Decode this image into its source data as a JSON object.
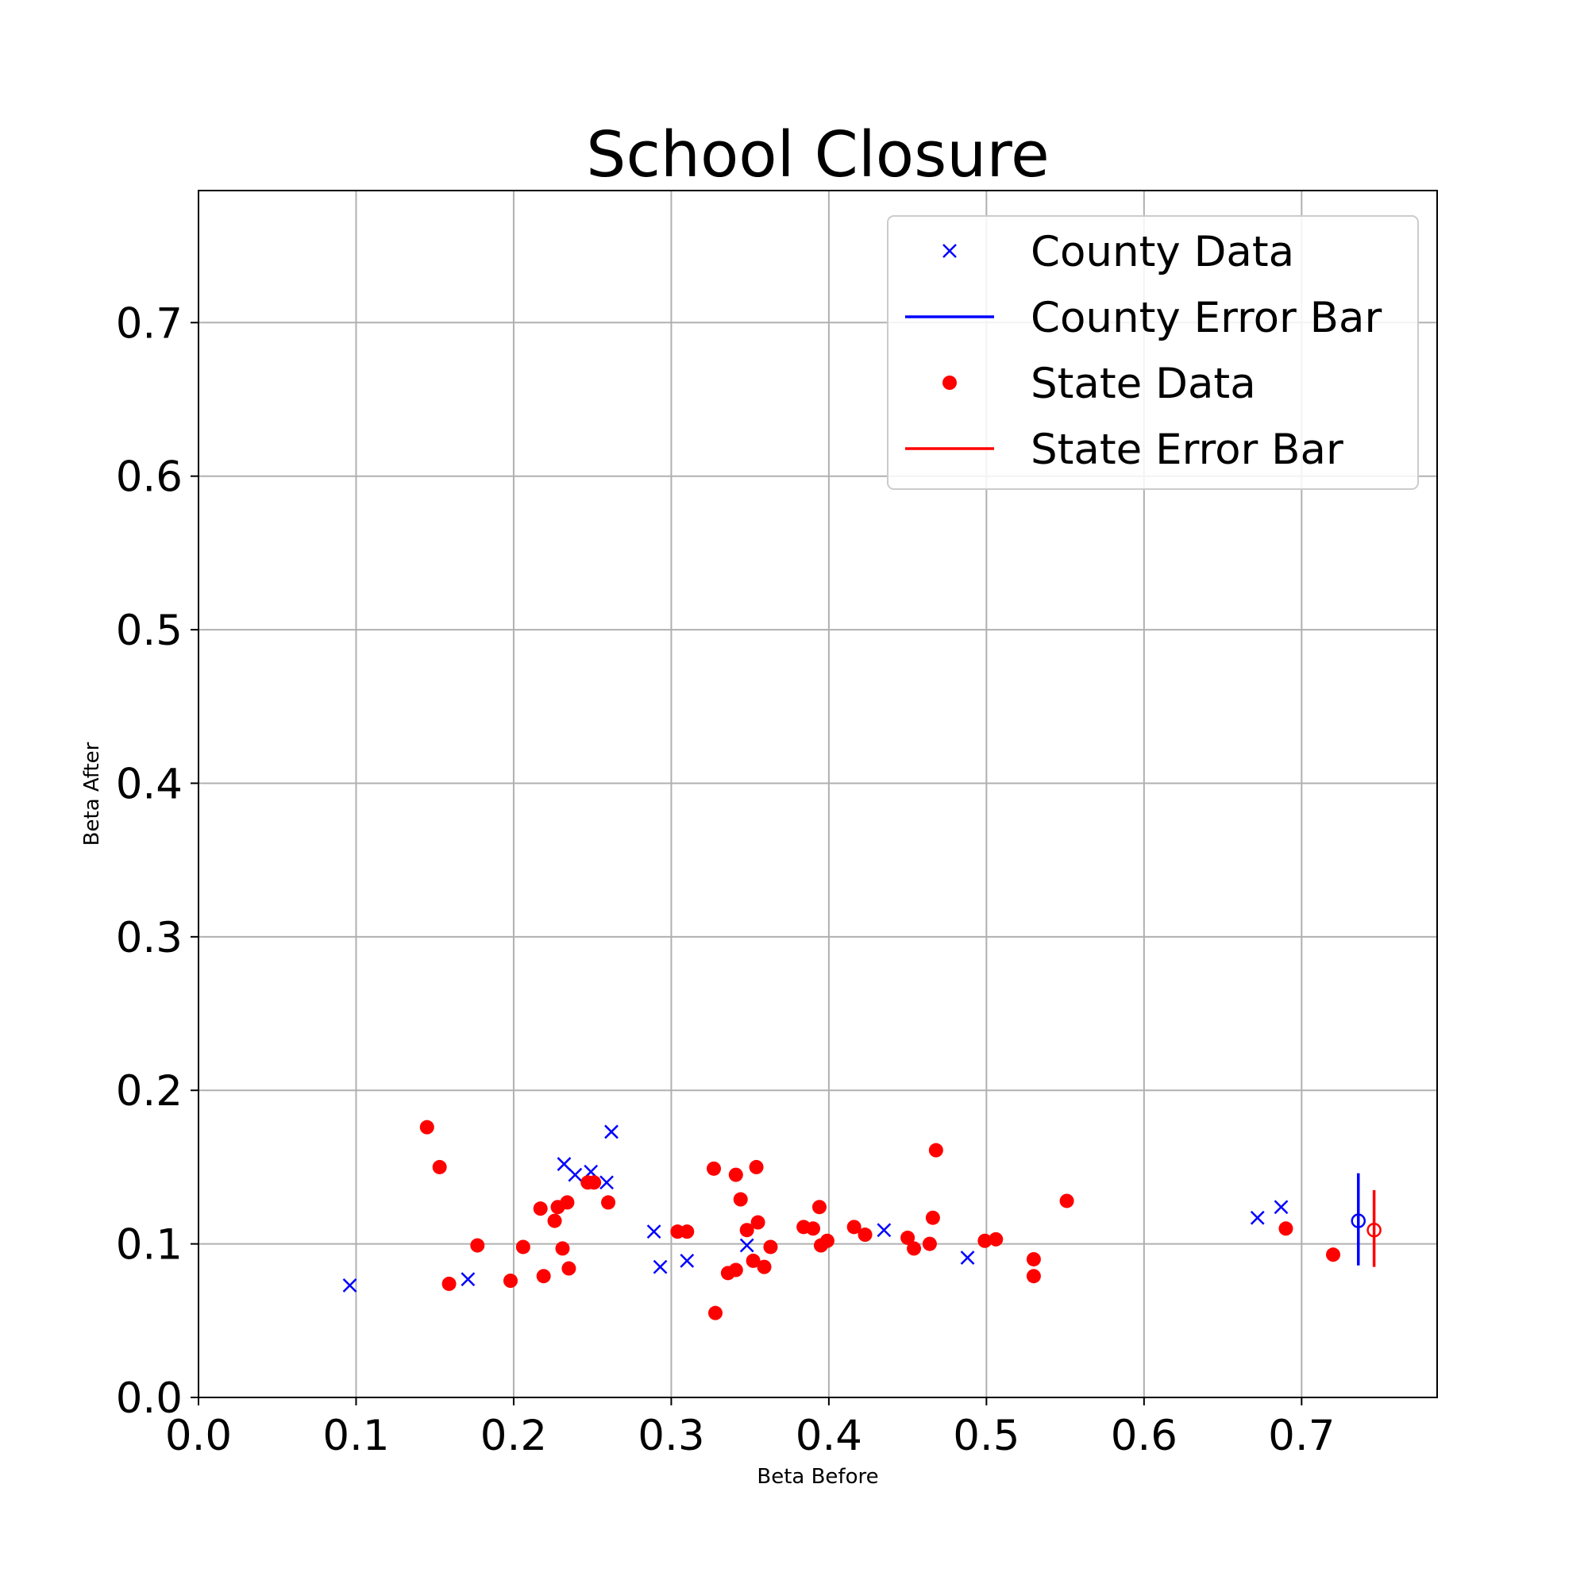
{
  "chart_data": {
    "type": "scatter",
    "title": "School Closure",
    "xlabel": "Beta Before",
    "ylabel": "Beta After",
    "xlim": [
      0.0,
      0.786
    ],
    "ylim": [
      0.0,
      0.786
    ],
    "xticks": [
      "0.0",
      "0.1",
      "0.2",
      "0.3",
      "0.4",
      "0.5",
      "0.6",
      "0.7"
    ],
    "yticks": [
      "0.0",
      "0.1",
      "0.2",
      "0.3",
      "0.4",
      "0.5",
      "0.6",
      "0.7"
    ],
    "grid": true,
    "legend_position": "top-right",
    "series": [
      {
        "name": "County Data",
        "marker": "x",
        "color": "#0000ff",
        "points": [
          [
            0.096,
            0.073
          ],
          [
            0.171,
            0.077
          ],
          [
            0.232,
            0.152
          ],
          [
            0.239,
            0.145
          ],
          [
            0.249,
            0.147
          ],
          [
            0.259,
            0.14
          ],
          [
            0.262,
            0.173
          ],
          [
            0.289,
            0.108
          ],
          [
            0.293,
            0.085
          ],
          [
            0.31,
            0.089
          ],
          [
            0.348,
            0.099
          ],
          [
            0.435,
            0.109
          ],
          [
            0.488,
            0.091
          ],
          [
            0.672,
            0.117
          ],
          [
            0.687,
            0.124
          ]
        ]
      },
      {
        "name": "State Data",
        "marker": "o",
        "color": "#ff0000",
        "points": [
          [
            0.145,
            0.176
          ],
          [
            0.153,
            0.15
          ],
          [
            0.159,
            0.074
          ],
          [
            0.177,
            0.099
          ],
          [
            0.198,
            0.076
          ],
          [
            0.206,
            0.098
          ],
          [
            0.217,
            0.123
          ],
          [
            0.219,
            0.079
          ],
          [
            0.226,
            0.115
          ],
          [
            0.228,
            0.124
          ],
          [
            0.231,
            0.097
          ],
          [
            0.234,
            0.127
          ],
          [
            0.235,
            0.084
          ],
          [
            0.247,
            0.14
          ],
          [
            0.251,
            0.14
          ],
          [
            0.26,
            0.127
          ],
          [
            0.304,
            0.108
          ],
          [
            0.31,
            0.108
          ],
          [
            0.327,
            0.149
          ],
          [
            0.328,
            0.055
          ],
          [
            0.336,
            0.081
          ],
          [
            0.341,
            0.083
          ],
          [
            0.341,
            0.145
          ],
          [
            0.344,
            0.129
          ],
          [
            0.348,
            0.109
          ],
          [
            0.352,
            0.089
          ],
          [
            0.354,
            0.15
          ],
          [
            0.355,
            0.114
          ],
          [
            0.359,
            0.085
          ],
          [
            0.363,
            0.098
          ],
          [
            0.384,
            0.111
          ],
          [
            0.39,
            0.11
          ],
          [
            0.394,
            0.124
          ],
          [
            0.395,
            0.099
          ],
          [
            0.399,
            0.102
          ],
          [
            0.416,
            0.111
          ],
          [
            0.423,
            0.106
          ],
          [
            0.45,
            0.104
          ],
          [
            0.454,
            0.097
          ],
          [
            0.464,
            0.1
          ],
          [
            0.466,
            0.117
          ],
          [
            0.468,
            0.161
          ],
          [
            0.499,
            0.102
          ],
          [
            0.506,
            0.103
          ],
          [
            0.53,
            0.09
          ],
          [
            0.53,
            0.079
          ],
          [
            0.551,
            0.128
          ],
          [
            0.69,
            0.11
          ],
          [
            0.72,
            0.093
          ]
        ]
      }
    ],
    "error_bars": [
      {
        "name": "County Error Bar",
        "color": "#0000ff",
        "x": 0.736,
        "y": 0.115,
        "ylow": 0.086,
        "yhigh": 0.146
      },
      {
        "name": "State Error Bar",
        "color": "#ff0000",
        "x": 0.746,
        "y": 0.109,
        "ylow": 0.085,
        "yhigh": 0.135
      }
    ],
    "legend": [
      {
        "label": "County Data",
        "kind": "x",
        "color": "#0000ff"
      },
      {
        "label": "County Error Bar",
        "kind": "line",
        "color": "#0000ff"
      },
      {
        "label": "State Data",
        "kind": "dot",
        "color": "#ff0000"
      },
      {
        "label": "State Error Bar",
        "kind": "line",
        "color": "#ff0000"
      }
    ]
  }
}
